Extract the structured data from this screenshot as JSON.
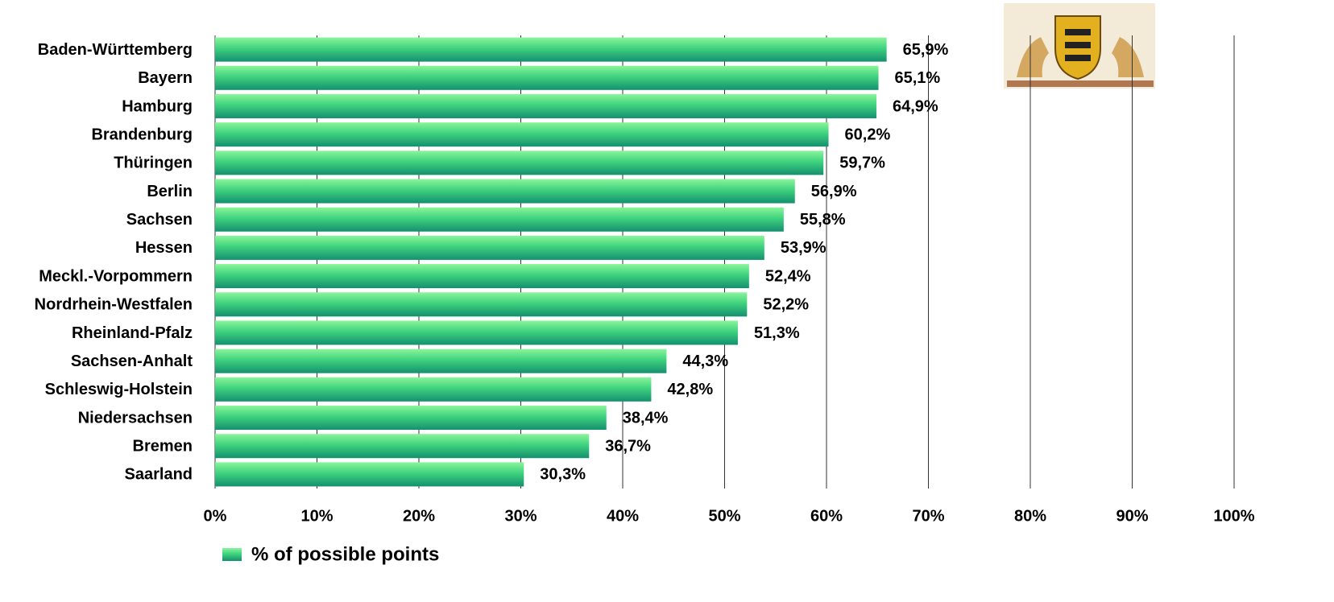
{
  "chart_data": {
    "type": "bar",
    "orientation": "horizontal",
    "categories": [
      "Baden-Württemberg",
      "Bayern",
      "Hamburg",
      "Brandenburg",
      "Thüringen",
      "Berlin",
      "Sachsen",
      "Hessen",
      "Meckl.-Vorpommern",
      "Nordrhein-Westfalen",
      "Rheinland-Pfalz",
      "Sachsen-Anhalt",
      "Schleswig-Holstein",
      "Niedersachsen",
      "Bremen",
      "Saarland"
    ],
    "series": [
      {
        "name": "% of possible points",
        "color": "#2fc07a",
        "values": [
          65.9,
          65.1,
          64.9,
          60.2,
          59.7,
          56.9,
          55.8,
          53.9,
          52.4,
          52.2,
          51.3,
          44.3,
          42.8,
          38.4,
          36.7,
          30.3
        ],
        "value_labels": [
          "65,9%",
          "65,1%",
          "64,9%",
          "60,2%",
          "59,7%",
          "56,9%",
          "55,8%",
          "53,9%",
          "52,4%",
          "52,2%",
          "51,3%",
          "44,3%",
          "42,8%",
          "38,4%",
          "36,7%",
          "30,3%"
        ]
      }
    ],
    "xlim": [
      0,
      100
    ],
    "xticks": [
      {
        "value": 0,
        "label": "0%"
      },
      {
        "value": 10,
        "label": "10%"
      },
      {
        "value": 20,
        "label": "20%"
      },
      {
        "value": 30,
        "label": "30%"
      },
      {
        "value": 40,
        "label": "40%"
      },
      {
        "value": 50,
        "label": "50%"
      },
      {
        "value": 60,
        "label": "60%"
      },
      {
        "value": 70,
        "label": "70%"
      },
      {
        "value": 80,
        "label": "80%"
      },
      {
        "value": 90,
        "label": "90%"
      },
      {
        "value": 100,
        "label": "100%"
      }
    ],
    "grid": true,
    "legend": "bottom-left"
  }
}
